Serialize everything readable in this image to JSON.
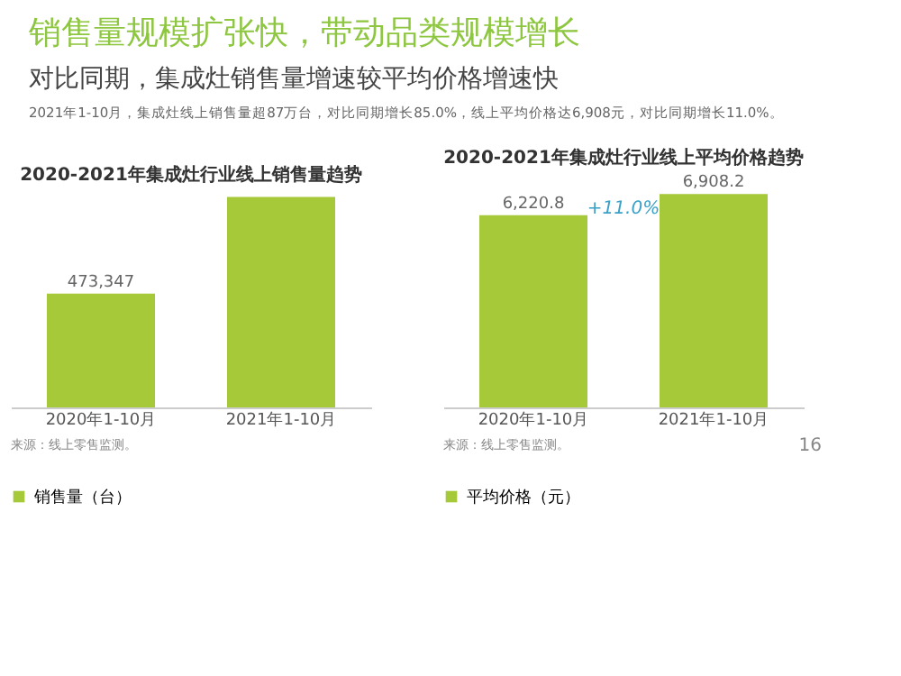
{
  "chart_data": [
    {
      "type": "bar",
      "title": "2020-2021年集成灶行业线上销售量趋势",
      "categories": [
        "2020年1-10月",
        "2021年1-10月"
      ],
      "series": [
        {
          "name": "销售量（台）",
          "color": "#a6c93a",
          "values": [
            473347,
            875692
          ],
          "value_labels": [
            "473,347",
            null
          ]
        }
      ],
      "legend": "bottom",
      "annotations": [
        "销售量规模扩张快，带动品类规模增长",
        "对比同期，集成灶销售量增速较平均价格增速快",
        "2021年1-10月，集成灶线上销售量超87万台，对比同期增长85.0%，线上平均价格达6,908元，对比同期增长11.0%。",
        "来源：线上零售监测。"
      ]
    },
    {
      "type": "bar",
      "title": "2020-2021年集成灶行业线上平均价格趋势",
      "categories": [
        "2020年1-10月",
        "2021年1-10月"
      ],
      "series": [
        {
          "name": "平均价格（元）",
          "color": "#a6c93a",
          "values": [
            6220.8,
            6908.2
          ],
          "value_labels": [
            "6,220.8",
            "6,908.2"
          ]
        }
      ],
      "legend": "bottom",
      "annotations": [
        "+11.0%",
        "来源：线上零售监测。",
        "16"
      ]
    }
  ]
}
